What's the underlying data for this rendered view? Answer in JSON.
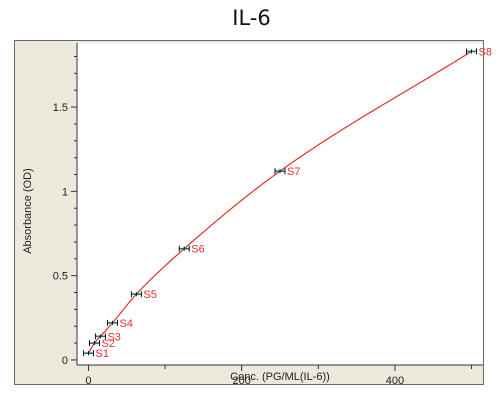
{
  "chart_data": {
    "type": "scatter",
    "title": "IL-6",
    "xlabel": "Conc. (PG/ML(IL-6))",
    "ylabel": "Absorbance (OD)",
    "xlim": [
      -15,
      515
    ],
    "ylim": [
      -0.03,
      1.88
    ],
    "x_ticks": [
      0,
      200,
      400
    ],
    "y_ticks": [
      0,
      0.5,
      1,
      1.5
    ],
    "x_tick_labels": [
      "0",
      "200",
      "400"
    ],
    "y_tick_labels": [
      "0",
      "0.5",
      "1",
      "1.5"
    ],
    "grid": false,
    "fit": "curve",
    "points": [
      {
        "label": "S1",
        "x": 0,
        "y": 0.04
      },
      {
        "label": "S2",
        "x": 7.8,
        "y": 0.1
      },
      {
        "label": "S3",
        "x": 15.6,
        "y": 0.14
      },
      {
        "label": "S4",
        "x": 31.3,
        "y": 0.22
      },
      {
        "label": "S5",
        "x": 62.5,
        "y": 0.39
      },
      {
        "label": "S6",
        "x": 125,
        "y": 0.66
      },
      {
        "label": "S7",
        "x": 250,
        "y": 1.12
      },
      {
        "label": "S8",
        "x": 500,
        "y": 1.83
      }
    ],
    "colors": {
      "curve": "#e03030",
      "point_label": "#e03030",
      "marker": "#1a7a7a",
      "background": "#ece8dc"
    }
  }
}
